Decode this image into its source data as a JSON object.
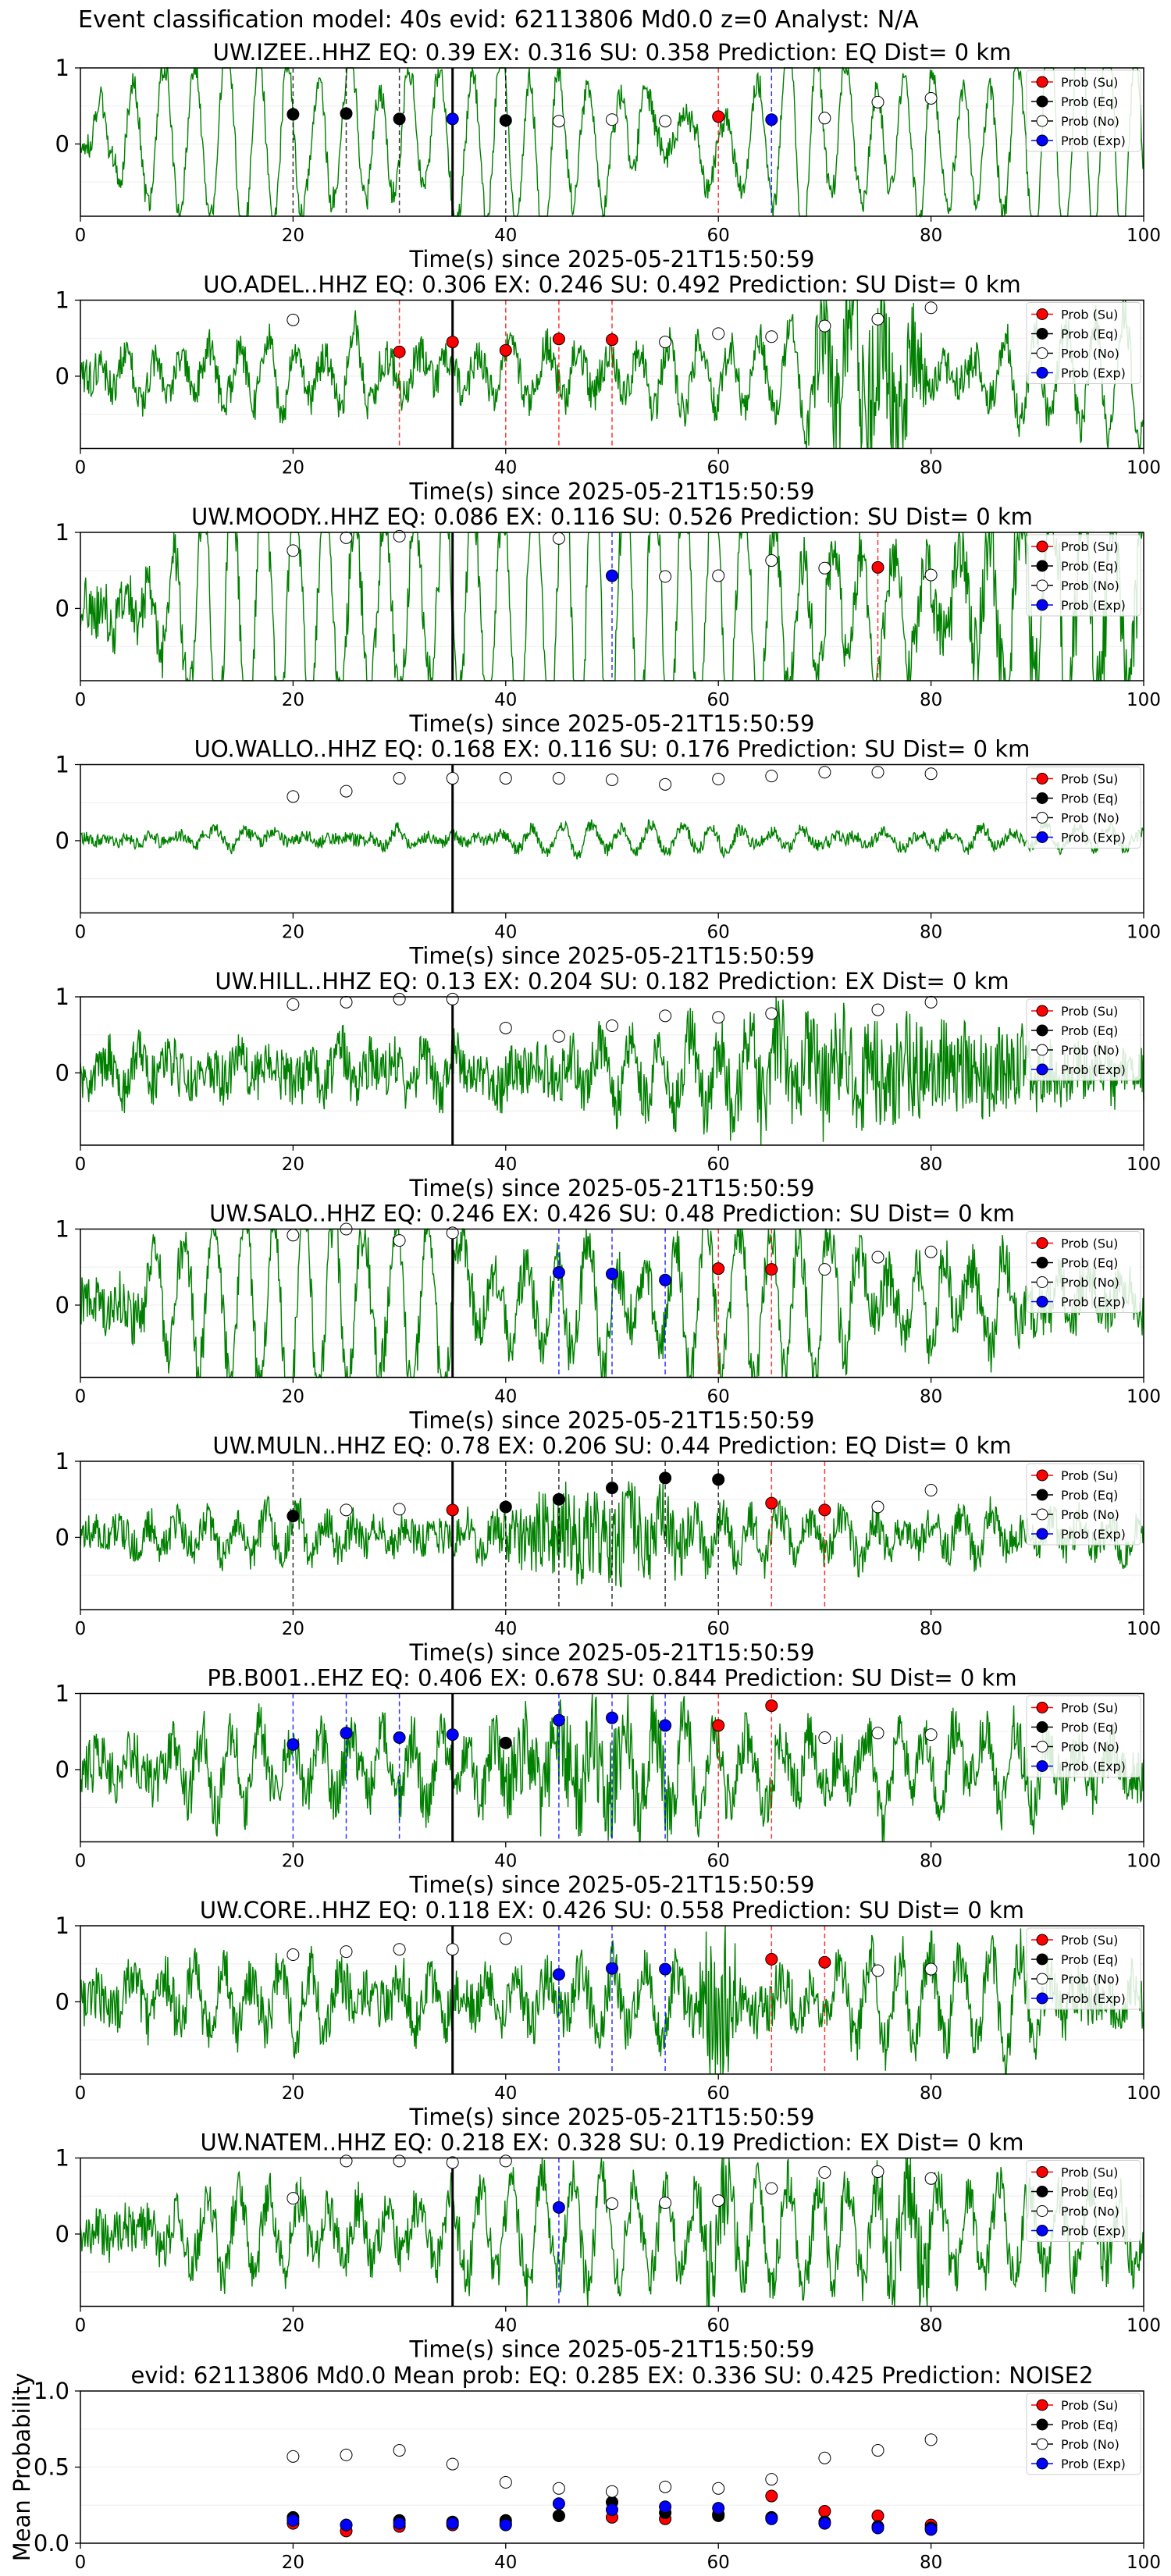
{
  "figure": {
    "suptitle": "Event classification model: 40s evid: 62113806 Md0.0 z=0 Analyst: N/A",
    "time_label": "Time(s) since 2025-05-21T15:50:59",
    "legend": [
      "Prob (Su)",
      "Prob (Eq)",
      "Prob (No)",
      "Prob (Exp)"
    ],
    "colors": {
      "su": "#ff0000",
      "eq": "#000000",
      "no": "#ffffff",
      "exp": "#0000ff",
      "wave": "#008000"
    }
  },
  "chart_data": [
    {
      "type": "line",
      "station": "UW.IZEE..HHZ",
      "title": "UW.IZEE..HHZ   EQ: 0.39  EX: 0.316  SU: 0.358   Prediction: EQ    Dist= 0 km",
      "xlabel": "Time(s) since 2025-05-21T15:50:59",
      "xlim": [
        0,
        100
      ],
      "xticks": [
        "0",
        "20",
        "40",
        "60",
        "80",
        "100"
      ],
      "yticks": [
        "1",
        "0"
      ],
      "window_start": 35,
      "vlines": [
        {
          "x": 20,
          "c": "eq"
        },
        {
          "x": 25,
          "c": "eq"
        },
        {
          "x": 30,
          "c": "eq"
        },
        {
          "x": 35,
          "c": "exp"
        },
        {
          "x": 40,
          "c": "eq"
        },
        {
          "x": 60,
          "c": "su"
        },
        {
          "x": 65,
          "c": "exp"
        }
      ],
      "points": [
        [
          20,
          0.39,
          "eq"
        ],
        [
          25,
          0.4,
          "eq"
        ],
        [
          30,
          0.33,
          "eq"
        ],
        [
          35,
          0.33,
          "exp"
        ],
        [
          40,
          0.31,
          "eq"
        ],
        [
          45,
          0.3,
          "no"
        ],
        [
          50,
          0.32,
          "no"
        ],
        [
          55,
          0.3,
          "no"
        ],
        [
          60,
          0.36,
          "su"
        ],
        [
          65,
          0.32,
          "exp"
        ],
        [
          70,
          0.34,
          "no"
        ],
        [
          75,
          0.55,
          "no"
        ],
        [
          80,
          0.6,
          "no"
        ]
      ]
    },
    {
      "type": "line",
      "station": "UO.ADEL..HHZ",
      "title": "UO.ADEL..HHZ   EQ: 0.306  EX: 0.246  SU: 0.492   Prediction: SU    Dist= 0 km",
      "xlabel": "Time(s) since 2025-05-21T15:50:59",
      "xlim": [
        0,
        100
      ],
      "xticks": [
        "0",
        "20",
        "40",
        "60",
        "80",
        "100"
      ],
      "yticks": [
        "1",
        "0"
      ],
      "window_start": 35,
      "vlines": [
        {
          "x": 30,
          "c": "su"
        },
        {
          "x": 35,
          "c": "su"
        },
        {
          "x": 40,
          "c": "su"
        },
        {
          "x": 45,
          "c": "su"
        },
        {
          "x": 50,
          "c": "su"
        }
      ],
      "points": [
        [
          20,
          0.74,
          "no"
        ],
        [
          30,
          0.32,
          "su"
        ],
        [
          35,
          0.45,
          "su"
        ],
        [
          40,
          0.34,
          "su"
        ],
        [
          45,
          0.49,
          "su"
        ],
        [
          50,
          0.48,
          "su"
        ],
        [
          55,
          0.45,
          "no"
        ],
        [
          60,
          0.56,
          "no"
        ],
        [
          65,
          0.52,
          "no"
        ],
        [
          70,
          0.66,
          "no"
        ],
        [
          75,
          0.75,
          "no"
        ],
        [
          80,
          0.9,
          "no"
        ]
      ]
    },
    {
      "type": "line",
      "station": "UW.MOODY..HHZ",
      "title": "UW.MOODY..HHZ   EQ: 0.086  EX: 0.116  SU: 0.526   Prediction: SU    Dist= 0 km",
      "xlabel": "Time(s) since 2025-05-21T15:50:59",
      "xlim": [
        0,
        100
      ],
      "xticks": [
        "0",
        "20",
        "40",
        "60",
        "80",
        "100"
      ],
      "yticks": [
        "1",
        "0"
      ],
      "window_start": 35,
      "vlines": [
        {
          "x": 50,
          "c": "exp"
        },
        {
          "x": 75,
          "c": "su"
        }
      ],
      "points": [
        [
          20,
          0.76,
          "no"
        ],
        [
          25,
          0.93,
          "no"
        ],
        [
          30,
          0.95,
          "no"
        ],
        [
          45,
          0.92,
          "no"
        ],
        [
          50,
          0.43,
          "exp"
        ],
        [
          55,
          0.42,
          "no"
        ],
        [
          60,
          0.43,
          "no"
        ],
        [
          65,
          0.63,
          "no"
        ],
        [
          70,
          0.53,
          "no"
        ],
        [
          75,
          0.54,
          "su"
        ],
        [
          80,
          0.44,
          "no"
        ]
      ]
    },
    {
      "type": "line",
      "station": "UO.WALLO..HHZ",
      "title": "UO.WALLO..HHZ   EQ: 0.168  EX: 0.116  SU: 0.176   Prediction: SU    Dist= 0 km",
      "xlabel": "Time(s) since 2025-05-21T15:50:59",
      "xlim": [
        0,
        100
      ],
      "xticks": [
        "0",
        "20",
        "40",
        "60",
        "80",
        "100"
      ],
      "yticks": [
        "1",
        "0"
      ],
      "window_start": 35,
      "vlines": [],
      "points": [
        [
          20,
          0.58,
          "no"
        ],
        [
          25,
          0.65,
          "no"
        ],
        [
          30,
          0.82,
          "no"
        ],
        [
          35,
          0.82,
          "no"
        ],
        [
          40,
          0.82,
          "no"
        ],
        [
          45,
          0.82,
          "no"
        ],
        [
          50,
          0.8,
          "no"
        ],
        [
          55,
          0.74,
          "no"
        ],
        [
          60,
          0.81,
          "no"
        ],
        [
          65,
          0.85,
          "no"
        ],
        [
          70,
          0.9,
          "no"
        ],
        [
          75,
          0.9,
          "no"
        ],
        [
          80,
          0.88,
          "no"
        ]
      ]
    },
    {
      "type": "line",
      "station": "UW.HILL..HHZ",
      "title": "UW.HILL..HHZ   EQ: 0.13  EX: 0.204  SU: 0.182   Prediction: EX    Dist= 0 km",
      "xlabel": "Time(s) since 2025-05-21T15:50:59",
      "xlim": [
        0,
        100
      ],
      "xticks": [
        "0",
        "20",
        "40",
        "60",
        "80",
        "100"
      ],
      "yticks": [
        "1",
        "0"
      ],
      "window_start": 35,
      "vlines": [],
      "points": [
        [
          20,
          0.9,
          "no"
        ],
        [
          25,
          0.93,
          "no"
        ],
        [
          30,
          0.97,
          "no"
        ],
        [
          35,
          0.97,
          "no"
        ],
        [
          40,
          0.59,
          "no"
        ],
        [
          45,
          0.48,
          "no"
        ],
        [
          50,
          0.62,
          "no"
        ],
        [
          55,
          0.75,
          "no"
        ],
        [
          60,
          0.73,
          "no"
        ],
        [
          65,
          0.78,
          "no"
        ],
        [
          75,
          0.83,
          "no"
        ],
        [
          80,
          0.93,
          "no"
        ]
      ]
    },
    {
      "type": "line",
      "station": "UW.SALO..HHZ",
      "title": "UW.SALO..HHZ   EQ: 0.246  EX: 0.426  SU: 0.48   Prediction: SU    Dist= 0 km",
      "xlabel": "Time(s) since 2025-05-21T15:50:59",
      "xlim": [
        0,
        100
      ],
      "xticks": [
        "0",
        "20",
        "40",
        "60",
        "80",
        "100"
      ],
      "yticks": [
        "1",
        "0"
      ],
      "window_start": 35,
      "vlines": [
        {
          "x": 45,
          "c": "exp"
        },
        {
          "x": 50,
          "c": "exp"
        },
        {
          "x": 55,
          "c": "exp"
        },
        {
          "x": 60,
          "c": "su"
        },
        {
          "x": 65,
          "c": "su"
        }
      ],
      "points": [
        [
          20,
          0.92,
          "no"
        ],
        [
          25,
          1.0,
          "no"
        ],
        [
          30,
          0.85,
          "no"
        ],
        [
          35,
          0.95,
          "no"
        ],
        [
          45,
          0.43,
          "exp"
        ],
        [
          50,
          0.41,
          "exp"
        ],
        [
          55,
          0.33,
          "exp"
        ],
        [
          60,
          0.48,
          "su"
        ],
        [
          65,
          0.47,
          "su"
        ],
        [
          70,
          0.47,
          "no"
        ],
        [
          75,
          0.63,
          "no"
        ],
        [
          80,
          0.7,
          "no"
        ]
      ]
    },
    {
      "type": "line",
      "station": "UW.MULN..HHZ",
      "title": "UW.MULN..HHZ   EQ: 0.78  EX: 0.206  SU: 0.44   Prediction: EQ    Dist= 0 km",
      "xlabel": "Time(s) since 2025-05-21T15:50:59",
      "xlim": [
        0,
        100
      ],
      "xticks": [
        "0",
        "20",
        "40",
        "60",
        "80",
        "100"
      ],
      "yticks": [
        "1",
        "0"
      ],
      "window_start": 35,
      "vlines": [
        {
          "x": 20,
          "c": "eq"
        },
        {
          "x": 35,
          "c": "su"
        },
        {
          "x": 40,
          "c": "eq"
        },
        {
          "x": 45,
          "c": "eq"
        },
        {
          "x": 50,
          "c": "eq"
        },
        {
          "x": 55,
          "c": "eq"
        },
        {
          "x": 60,
          "c": "eq"
        },
        {
          "x": 65,
          "c": "su"
        },
        {
          "x": 70,
          "c": "su"
        }
      ],
      "points": [
        [
          20,
          0.28,
          "eq"
        ],
        [
          25,
          0.36,
          "no"
        ],
        [
          30,
          0.37,
          "no"
        ],
        [
          35,
          0.36,
          "su"
        ],
        [
          40,
          0.4,
          "eq"
        ],
        [
          45,
          0.5,
          "eq"
        ],
        [
          50,
          0.65,
          "eq"
        ],
        [
          55,
          0.78,
          "eq"
        ],
        [
          60,
          0.76,
          "eq"
        ],
        [
          65,
          0.45,
          "su"
        ],
        [
          70,
          0.36,
          "su"
        ],
        [
          75,
          0.4,
          "no"
        ],
        [
          80,
          0.62,
          "no"
        ]
      ]
    },
    {
      "type": "line",
      "station": "PB.B001..EHZ",
      "title": "PB.B001..EHZ   EQ: 0.406  EX: 0.678  SU: 0.844   Prediction: SU    Dist= 0 km",
      "xlabel": "Time(s) since 2025-05-21T15:50:59",
      "xlim": [
        0,
        100
      ],
      "xticks": [
        "0",
        "20",
        "40",
        "60",
        "80",
        "100"
      ],
      "yticks": [
        "1",
        "0"
      ],
      "window_start": 35,
      "vlines": [
        {
          "x": 20,
          "c": "exp"
        },
        {
          "x": 25,
          "c": "exp"
        },
        {
          "x": 30,
          "c": "exp"
        },
        {
          "x": 35,
          "c": "exp"
        },
        {
          "x": 45,
          "c": "exp"
        },
        {
          "x": 50,
          "c": "exp"
        },
        {
          "x": 55,
          "c": "exp"
        },
        {
          "x": 60,
          "c": "su"
        },
        {
          "x": 65,
          "c": "su"
        }
      ],
      "points": [
        [
          20,
          0.33,
          "exp"
        ],
        [
          25,
          0.48,
          "exp"
        ],
        [
          30,
          0.42,
          "exp"
        ],
        [
          35,
          0.46,
          "exp"
        ],
        [
          40,
          0.35,
          "eq"
        ],
        [
          45,
          0.65,
          "exp"
        ],
        [
          50,
          0.68,
          "exp"
        ],
        [
          55,
          0.58,
          "exp"
        ],
        [
          60,
          0.58,
          "su"
        ],
        [
          65,
          0.84,
          "su"
        ],
        [
          70,
          0.42,
          "no"
        ],
        [
          75,
          0.48,
          "no"
        ],
        [
          80,
          0.46,
          "no"
        ]
      ]
    },
    {
      "type": "line",
      "station": "UW.CORE..HHZ",
      "title": "UW.CORE..HHZ   EQ: 0.118  EX: 0.426  SU: 0.558   Prediction: SU    Dist= 0 km",
      "xlabel": "Time(s) since 2025-05-21T15:50:59",
      "xlim": [
        0,
        100
      ],
      "xticks": [
        "0",
        "20",
        "40",
        "60",
        "80",
        "100"
      ],
      "yticks": [
        "1",
        "0"
      ],
      "window_start": 35,
      "vlines": [
        {
          "x": 45,
          "c": "exp"
        },
        {
          "x": 50,
          "c": "exp"
        },
        {
          "x": 55,
          "c": "exp"
        },
        {
          "x": 65,
          "c": "su"
        },
        {
          "x": 70,
          "c": "su"
        }
      ],
      "points": [
        [
          20,
          0.62,
          "no"
        ],
        [
          25,
          0.66,
          "no"
        ],
        [
          30,
          0.69,
          "no"
        ],
        [
          35,
          0.69,
          "no"
        ],
        [
          40,
          0.83,
          "no"
        ],
        [
          45,
          0.36,
          "exp"
        ],
        [
          50,
          0.44,
          "exp"
        ],
        [
          55,
          0.43,
          "exp"
        ],
        [
          65,
          0.56,
          "su"
        ],
        [
          70,
          0.52,
          "su"
        ],
        [
          75,
          0.41,
          "no"
        ],
        [
          80,
          0.43,
          "no"
        ]
      ]
    },
    {
      "type": "line",
      "station": "UW.NATEM..HHZ",
      "title": "UW.NATEM..HHZ   EQ: 0.218  EX: 0.328  SU: 0.19   Prediction: EX    Dist= 0 km",
      "xlabel": "Time(s) since 2025-05-21T15:50:59",
      "xlim": [
        0,
        100
      ],
      "xticks": [
        "0",
        "20",
        "40",
        "60",
        "80",
        "100"
      ],
      "yticks": [
        "1",
        "0"
      ],
      "window_start": 35,
      "vlines": [
        {
          "x": 45,
          "c": "exp"
        }
      ],
      "points": [
        [
          20,
          0.47,
          "no"
        ],
        [
          25,
          0.96,
          "no"
        ],
        [
          30,
          0.96,
          "no"
        ],
        [
          35,
          0.94,
          "no"
        ],
        [
          40,
          0.96,
          "no"
        ],
        [
          45,
          0.35,
          "exp"
        ],
        [
          50,
          0.4,
          "no"
        ],
        [
          55,
          0.41,
          "no"
        ],
        [
          60,
          0.44,
          "no"
        ],
        [
          65,
          0.6,
          "no"
        ],
        [
          70,
          0.81,
          "no"
        ],
        [
          75,
          0.82,
          "no"
        ],
        [
          80,
          0.73,
          "no"
        ]
      ]
    },
    {
      "type": "scatter",
      "title": "evid: 62113806  Md0.0   Mean prob:   EQ: 0.285  EX: 0.336  SU: 0.425   Prediction: NOISE2",
      "ylabel": "Mean Probability",
      "xlim": [
        0,
        100
      ],
      "ylim": [
        0,
        1
      ],
      "xticks": [
        "0",
        "20",
        "40",
        "60",
        "80",
        "100"
      ],
      "yticks": [
        "0.0",
        "0.5",
        "1.0"
      ],
      "x": [
        20,
        25,
        30,
        35,
        40,
        45,
        50,
        55,
        60,
        65,
        70,
        75,
        80
      ],
      "series": [
        {
          "name": "Prob (Su)",
          "key": "su",
          "values": [
            0.13,
            0.08,
            0.11,
            0.12,
            0.13,
            0.18,
            0.17,
            0.16,
            0.19,
            0.31,
            0.21,
            0.18,
            0.12
          ]
        },
        {
          "name": "Prob (Eq)",
          "key": "eq",
          "values": [
            0.17,
            0.12,
            0.15,
            0.14,
            0.15,
            0.18,
            0.27,
            0.2,
            0.18,
            0.17,
            0.14,
            0.11,
            0.1
          ]
        },
        {
          "name": "Prob (No)",
          "key": "no",
          "values": [
            0.57,
            0.58,
            0.61,
            0.52,
            0.4,
            0.36,
            0.34,
            0.37,
            0.36,
            0.42,
            0.56,
            0.61,
            0.68
          ]
        },
        {
          "name": "Prob (Exp)",
          "key": "exp",
          "values": [
            0.15,
            0.12,
            0.13,
            0.13,
            0.12,
            0.26,
            0.22,
            0.24,
            0.23,
            0.16,
            0.13,
            0.1,
            0.09
          ]
        }
      ]
    }
  ]
}
